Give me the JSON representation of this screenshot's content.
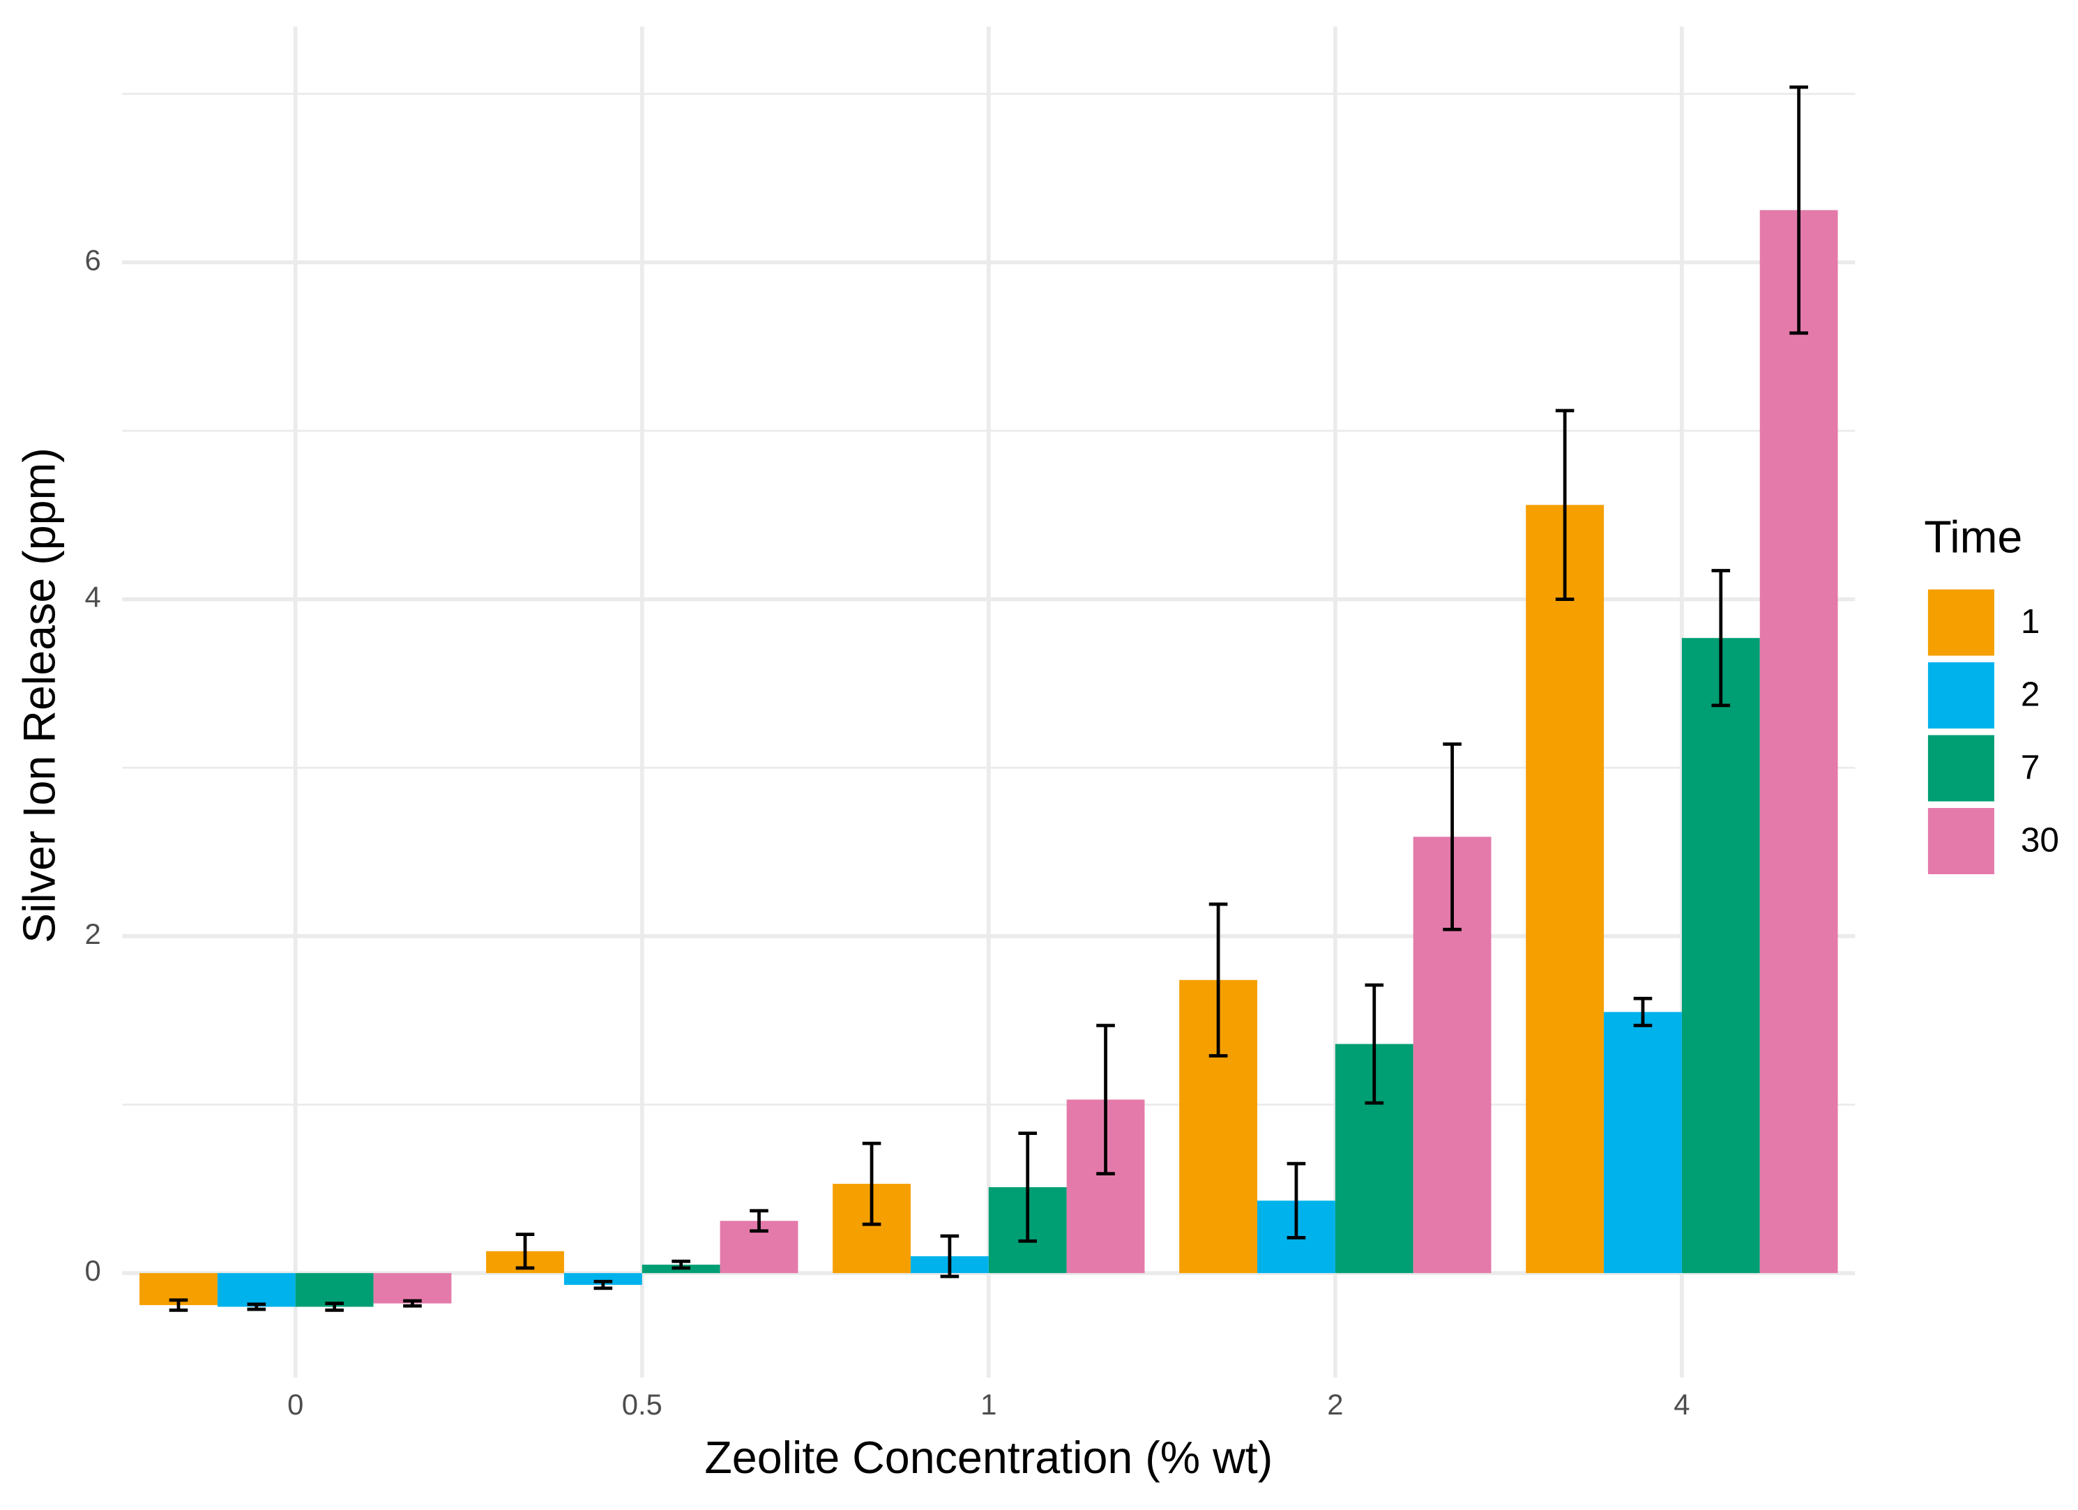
{
  "chart_data": {
    "type": "bar",
    "x_label": "Zeolite Concentration (% wt)",
    "y_label": "Silver Ion Release (ppm)",
    "legend_title": "Time",
    "categories": [
      "0",
      "0.5",
      "1",
      "2",
      "4"
    ],
    "series": [
      {
        "name": "1",
        "color": "#f59f00",
        "values": [
          -0.19,
          0.13,
          0.53,
          1.74,
          4.56
        ],
        "errors": [
          0.03,
          0.1,
          0.24,
          0.45,
          0.56
        ]
      },
      {
        "name": "2",
        "color": "#00b2ec",
        "values": [
          -0.2,
          -0.07,
          0.1,
          0.43,
          1.55
        ],
        "errors": [
          0.015,
          0.02,
          0.12,
          0.22,
          0.08
        ]
      },
      {
        "name": "7",
        "color": "#009e73",
        "values": [
          -0.2,
          0.05,
          0.51,
          1.36,
          3.77
        ],
        "errors": [
          0.02,
          0.02,
          0.32,
          0.35,
          0.4
        ]
      },
      {
        "name": "30",
        "color": "#e47aaa",
        "values": [
          -0.18,
          0.31,
          1.03,
          2.59,
          6.31
        ],
        "errors": [
          0.015,
          0.06,
          0.44,
          0.55,
          0.73
        ]
      }
    ],
    "ylim": [
      -0.62,
      7.4
    ],
    "yticks": [
      0,
      2,
      4,
      6
    ],
    "yminor": [
      1,
      3,
      5,
      7
    ],
    "grid": true,
    "legend": "right"
  }
}
